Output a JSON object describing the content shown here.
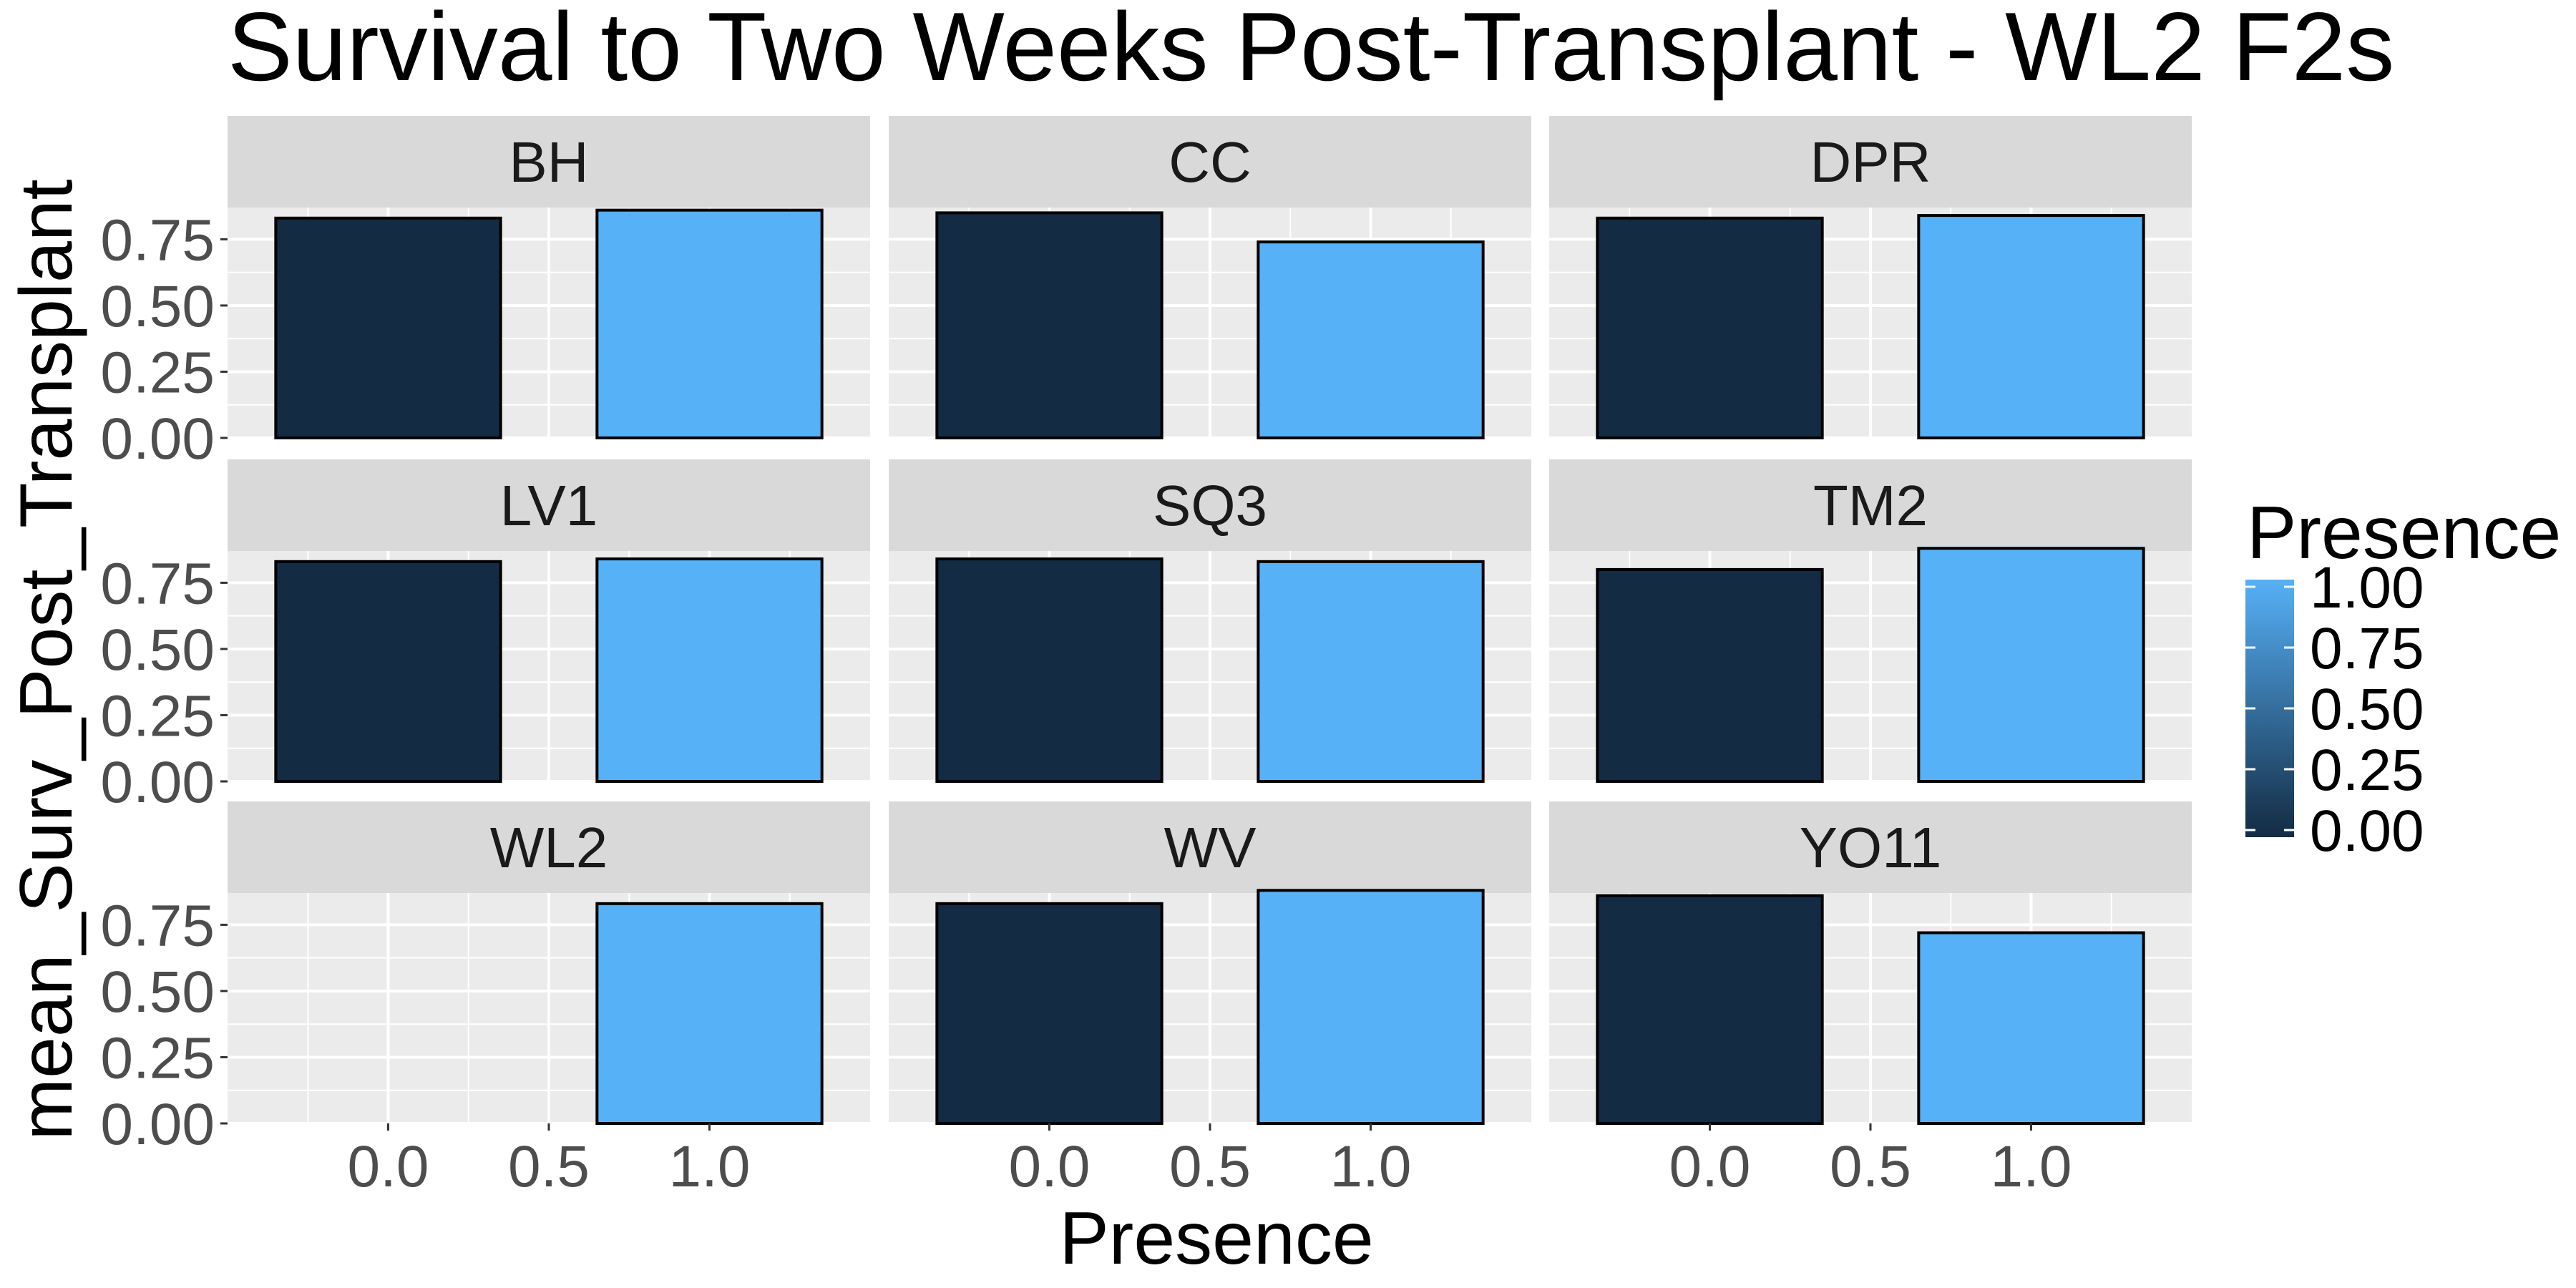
{
  "chart_data": {
    "type": "bar",
    "title": "Survival to Two Weeks Post-Transplant  - WL2 F2s",
    "xlabel": "Presence",
    "ylabel": "mean_Surv_Post_Transplant",
    "xlim": [
      -0.5,
      1.5
    ],
    "ylim": [
      0,
      0.87
    ],
    "x_ticks": [
      0.0,
      0.5,
      1.0
    ],
    "x_tick_labels": [
      "0.0",
      "0.5",
      "1.0"
    ],
    "y_ticks": [
      0.0,
      0.25,
      0.5,
      0.75
    ],
    "y_tick_labels": [
      "0.00",
      "0.25",
      "0.50",
      "0.75"
    ],
    "facets": [
      {
        "label": "BH",
        "bars": [
          {
            "x": 0,
            "value": 0.83
          },
          {
            "x": 1,
            "value": 0.86
          }
        ]
      },
      {
        "label": "CC",
        "bars": [
          {
            "x": 0,
            "value": 0.85
          },
          {
            "x": 1,
            "value": 0.74
          }
        ]
      },
      {
        "label": "DPR",
        "bars": [
          {
            "x": 0,
            "value": 0.83
          },
          {
            "x": 1,
            "value": 0.84
          }
        ]
      },
      {
        "label": "LV1",
        "bars": [
          {
            "x": 0,
            "value": 0.83
          },
          {
            "x": 1,
            "value": 0.84
          }
        ]
      },
      {
        "label": "SQ3",
        "bars": [
          {
            "x": 0,
            "value": 0.84
          },
          {
            "x": 1,
            "value": 0.83
          }
        ]
      },
      {
        "label": "TM2",
        "bars": [
          {
            "x": 0,
            "value": 0.8
          },
          {
            "x": 1,
            "value": 0.88
          }
        ]
      },
      {
        "label": "WL2",
        "bars": [
          {
            "x": 1,
            "value": 0.83
          }
        ]
      },
      {
        "label": "WV",
        "bars": [
          {
            "x": 0,
            "value": 0.83
          },
          {
            "x": 1,
            "value": 0.88
          }
        ]
      },
      {
        "label": "YO11",
        "bars": [
          {
            "x": 0,
            "value": 0.86
          },
          {
            "x": 1,
            "value": 0.72
          }
        ]
      }
    ],
    "fill_scale": {
      "title": "Presence",
      "low_color": "#132B43",
      "high_color": "#56B1F7",
      "range": [
        0,
        1
      ],
      "tick_labels": [
        "1.00",
        "0.75",
        "0.50",
        "0.25",
        "0.00"
      ]
    },
    "panel_background": "#EBEBEB",
    "strip_background": "#D9D9D9",
    "grid": true,
    "legend_position": "right"
  }
}
